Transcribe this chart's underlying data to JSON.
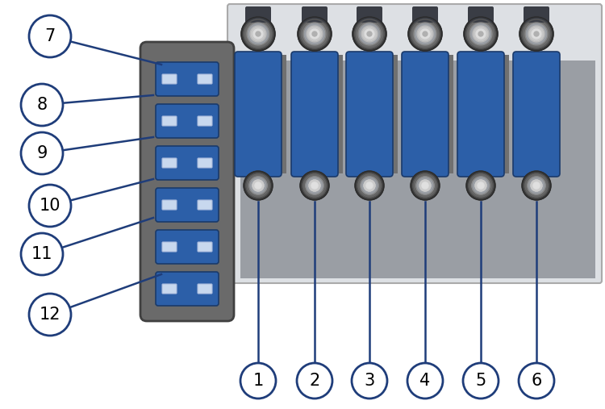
{
  "bg_color": "#ffffff",
  "outline_color": "#1f3d7a",
  "housing_bg": "#dde0e4",
  "housing_border": "#aaaaaa",
  "fuse_block_bg": "#6a6a6a",
  "fuse_block_border": "#404040",
  "fuse_color": "#2c5fa8",
  "fuse_tab_color": "#7090c8",
  "relay_blue": "#2c5fa8",
  "relay_blue_dark": "#1a3a6b",
  "gray_divider": "#808080",
  "gray_mid": "#909090",
  "bolt_dark": "#555555",
  "bolt_mid": "#888888",
  "bolt_light": "#c0c0c0",
  "bolt_bright": "#e0e0e0",
  "bolt_center": "#b0b0b0",
  "callout_fill": "#ffffff",
  "callout_border": "#1f3d7a",
  "left_labels": [
    "7",
    "8",
    "9",
    "10",
    "11",
    "12"
  ],
  "right_labels": [
    "1",
    "2",
    "3",
    "4",
    "5",
    "6"
  ],
  "figsize": [
    7.5,
    5.07
  ],
  "dpi": 100
}
